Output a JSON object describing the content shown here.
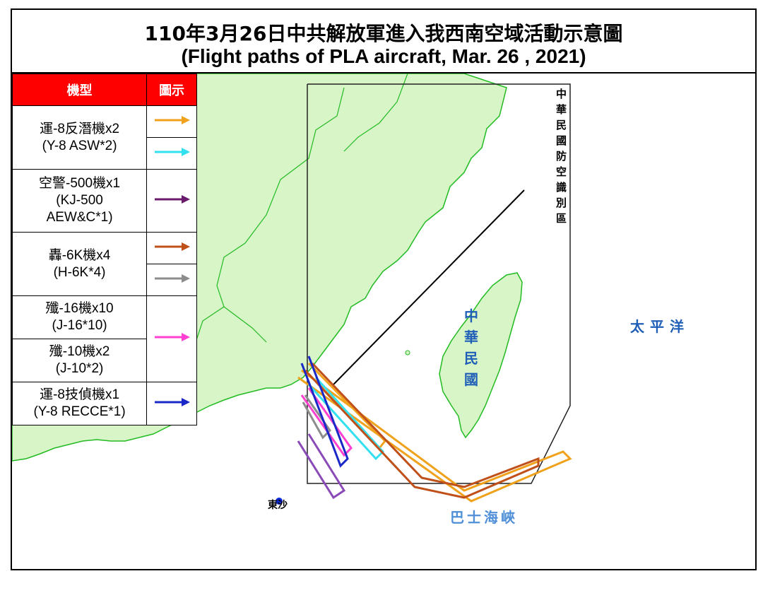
{
  "title": {
    "zh": "110年3月26日中共解放軍進入我西南空域活動示意圖",
    "en": "(Flight paths of PLA aircraft, Mar. 26 , 2021)"
  },
  "legend": {
    "header_type": "機型",
    "header_symbol": "圖示",
    "rows": [
      {
        "lines": [
          "運-8反潛機x2",
          "(Y-8 ASW*2)"
        ],
        "colors": [
          "#f0a21c",
          "#33e0f0"
        ]
      },
      {
        "lines": [
          "空警-500機x1",
          "(KJ-500",
          "AEW&C*1)"
        ],
        "colors": [
          "#6a1a6a"
        ]
      },
      {
        "lines": [
          "轟-6K機x4",
          "(H-6K*4)"
        ],
        "colors": [
          "#c0501a",
          "#8c8c8c"
        ]
      },
      {
        "lines": [
          "殲-16機x10",
          "(J-16*10)"
        ],
        "colors": [
          "#ff40d0"
        ]
      },
      {
        "lines": [
          "殲-10機x2",
          "(J-10*2)"
        ],
        "colors": []
      },
      {
        "lines": [
          "運-8技偵機x1",
          "(Y-8 RECCE*1)"
        ],
        "colors": [
          "#1a28c8"
        ]
      }
    ]
  },
  "map": {
    "adiz_label": "中華民國防空識別區",
    "taiwan_label": "中華民國",
    "pacific_label": "太平洋",
    "bashi_label": "巴士海峽",
    "dongsha_label": "東沙",
    "colors": {
      "land": "#d8f5c8",
      "coast": "#22bb22",
      "label_blue": "#1f5fb8",
      "dongsha_dot": "#0a2ad8"
    }
  }
}
